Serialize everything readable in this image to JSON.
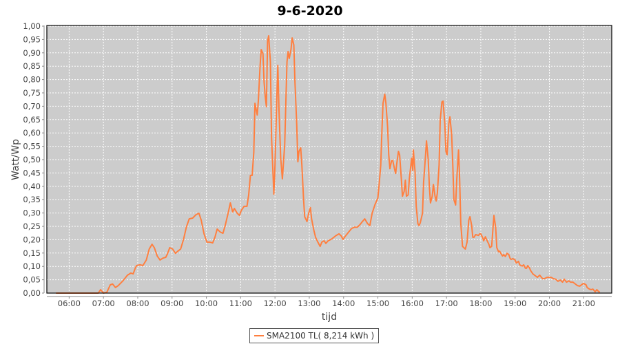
{
  "chart_data": {
    "type": "line",
    "title": "9-6-2020",
    "xlabel": "tijd",
    "ylabel": "Watt/Wp",
    "xlim": [
      "05:21",
      "21:49"
    ],
    "ylim": [
      0,
      1
    ],
    "grid": true,
    "legend_position": "bottom",
    "background_color": "#cccccc",
    "x_ticks": [
      "06:00",
      "07:00",
      "08:00",
      "09:00",
      "10:00",
      "11:00",
      "12:00",
      "13:00",
      "14:00",
      "15:00",
      "16:00",
      "17:00",
      "18:00",
      "19:00",
      "20:00",
      "21:00"
    ],
    "y_ticks": [
      "0,00",
      "0,05",
      "0,10",
      "0,15",
      "0,20",
      "0,25",
      "0,30",
      "0,35",
      "0,40",
      "0,45",
      "0,50",
      "0,55",
      "0,60",
      "0,65",
      "0,70",
      "0,75",
      "0,80",
      "0,85",
      "0,90",
      "0,95",
      "1,00"
    ],
    "series": [
      {
        "name": "SMA2100 TL( 8,214 kWh )",
        "color": "#ff7f3f",
        "points": [
          [
            "05:37",
            0
          ],
          [
            "06:51",
            0
          ],
          [
            "06:55",
            0.013
          ],
          [
            "07:00",
            0
          ],
          [
            "07:06",
            0.003
          ],
          [
            "07:12",
            0.031
          ],
          [
            "07:16",
            0.034
          ],
          [
            "07:21",
            0.021
          ],
          [
            "07:26",
            0.028
          ],
          [
            "07:34",
            0.046
          ],
          [
            "07:42",
            0.067
          ],
          [
            "07:48",
            0.075
          ],
          [
            "07:52",
            0.072
          ],
          [
            "07:56",
            0.095
          ],
          [
            "07:58",
            0.103
          ],
          [
            "08:04",
            0.106
          ],
          [
            "08:09",
            0.103
          ],
          [
            "08:15",
            0.124
          ],
          [
            "08:20",
            0.165
          ],
          [
            "08:25",
            0.183
          ],
          [
            "08:29",
            0.17
          ],
          [
            "08:34",
            0.139
          ],
          [
            "08:39",
            0.124
          ],
          [
            "08:44",
            0.131
          ],
          [
            "08:49",
            0.134
          ],
          [
            "08:52",
            0.147
          ],
          [
            "08:56",
            0.17
          ],
          [
            "09:01",
            0.165
          ],
          [
            "09:06",
            0.149
          ],
          [
            "09:10",
            0.157
          ],
          [
            "09:15",
            0.165
          ],
          [
            "09:20",
            0.201
          ],
          [
            "09:25",
            0.247
          ],
          [
            "09:30",
            0.278
          ],
          [
            "09:36",
            0.281
          ],
          [
            "09:42",
            0.294
          ],
          [
            "09:47",
            0.299
          ],
          [
            "09:51",
            0.273
          ],
          [
            "09:56",
            0.222
          ],
          [
            "10:01",
            0.191
          ],
          [
            "10:06",
            0.191
          ],
          [
            "10:11",
            0.188
          ],
          [
            "10:15",
            0.209
          ],
          [
            "10:19",
            0.24
          ],
          [
            "10:24",
            0.229
          ],
          [
            "10:29",
            0.224
          ],
          [
            "10:33",
            0.253
          ],
          [
            "10:38",
            0.299
          ],
          [
            "10:42",
            0.338
          ],
          [
            "10:46",
            0.304
          ],
          [
            "10:49",
            0.317
          ],
          [
            "10:54",
            0.299
          ],
          [
            "10:58",
            0.291
          ],
          [
            "11:01",
            0.309
          ],
          [
            "11:06",
            0.325
          ],
          [
            "11:11",
            0.325
          ],
          [
            "11:14",
            0.368
          ],
          [
            "11:17",
            0.441
          ],
          [
            "11:20",
            0.441
          ],
          [
            "11:23",
            0.526
          ],
          [
            "11:25",
            0.711
          ],
          [
            "11:29",
            0.667
          ],
          [
            "11:31",
            0.724
          ],
          [
            "11:34",
            0.853
          ],
          [
            "11:36",
            0.912
          ],
          [
            "11:39",
            0.897
          ],
          [
            "11:41",
            0.789
          ],
          [
            "11:43",
            0.737
          ],
          [
            "11:45",
            0.698
          ],
          [
            "11:47",
            0.943
          ],
          [
            "11:49",
            0.964
          ],
          [
            "11:52",
            0.866
          ],
          [
            "11:54",
            0.582
          ],
          [
            "11:58",
            0.371
          ],
          [
            "12:00",
            0.479
          ],
          [
            "12:03",
            0.711
          ],
          [
            "12:05",
            0.853
          ],
          [
            "12:07",
            0.685
          ],
          [
            "12:10",
            0.505
          ],
          [
            "12:13",
            0.428
          ],
          [
            "12:17",
            0.557
          ],
          [
            "12:19",
            0.711
          ],
          [
            "12:21",
            0.866
          ],
          [
            "12:23",
            0.905
          ],
          [
            "12:25",
            0.879
          ],
          [
            "12:28",
            0.912
          ],
          [
            "12:30",
            0.956
          ],
          [
            "12:33",
            0.93
          ],
          [
            "12:35",
            0.789
          ],
          [
            "12:38",
            0.634
          ],
          [
            "12:40",
            0.492
          ],
          [
            "12:42",
            0.531
          ],
          [
            "12:45",
            0.544
          ],
          [
            "12:47",
            0.479
          ],
          [
            "12:50",
            0.35
          ],
          [
            "12:52",
            0.286
          ],
          [
            "12:56",
            0.268
          ],
          [
            "12:59",
            0.299
          ],
          [
            "13:02",
            0.32
          ],
          [
            "13:04",
            0.278
          ],
          [
            "13:08",
            0.235
          ],
          [
            "13:11",
            0.209
          ],
          [
            "13:15",
            0.191
          ],
          [
            "13:19",
            0.175
          ],
          [
            "13:22",
            0.191
          ],
          [
            "13:26",
            0.196
          ],
          [
            "13:29",
            0.186
          ],
          [
            "13:33",
            0.196
          ],
          [
            "13:38",
            0.201
          ],
          [
            "13:43",
            0.209
          ],
          [
            "13:47",
            0.216
          ],
          [
            "13:52",
            0.222
          ],
          [
            "13:56",
            0.214
          ],
          [
            "13:59",
            0.201
          ],
          [
            "14:04",
            0.216
          ],
          [
            "14:09",
            0.229
          ],
          [
            "14:14",
            0.242
          ],
          [
            "14:19",
            0.247
          ],
          [
            "14:24",
            0.247
          ],
          [
            "14:28",
            0.255
          ],
          [
            "14:33",
            0.268
          ],
          [
            "14:37",
            0.278
          ],
          [
            "14:42",
            0.26
          ],
          [
            "14:46",
            0.253
          ],
          [
            "14:50",
            0.299
          ],
          [
            "14:55",
            0.332
          ],
          [
            "15:00",
            0.356
          ],
          [
            "15:02",
            0.402
          ],
          [
            "15:05",
            0.479
          ],
          [
            "15:07",
            0.608
          ],
          [
            "15:09",
            0.711
          ],
          [
            "15:12",
            0.745
          ],
          [
            "15:14",
            0.711
          ],
          [
            "15:17",
            0.621
          ],
          [
            "15:19",
            0.518
          ],
          [
            "15:21",
            0.466
          ],
          [
            "15:24",
            0.497
          ],
          [
            "15:26",
            0.497
          ],
          [
            "15:29",
            0.466
          ],
          [
            "15:31",
            0.448
          ],
          [
            "15:33",
            0.484
          ],
          [
            "15:36",
            0.531
          ],
          [
            "15:38",
            0.518
          ],
          [
            "15:41",
            0.428
          ],
          [
            "15:43",
            0.363
          ],
          [
            "15:46",
            0.381
          ],
          [
            "15:48",
            0.423
          ],
          [
            "15:50",
            0.363
          ],
          [
            "15:53",
            0.368
          ],
          [
            "15:55",
            0.428
          ],
          [
            "15:59",
            0.505
          ],
          [
            "16:01",
            0.459
          ],
          [
            "16:02",
            0.536
          ],
          [
            "16:05",
            0.454
          ],
          [
            "16:07",
            0.325
          ],
          [
            "16:10",
            0.26
          ],
          [
            "16:12",
            0.253
          ],
          [
            "16:14",
            0.263
          ],
          [
            "16:18",
            0.299
          ],
          [
            "16:20",
            0.415
          ],
          [
            "16:23",
            0.505
          ],
          [
            "16:25",
            0.57
          ],
          [
            "16:28",
            0.5
          ],
          [
            "16:30",
            0.402
          ],
          [
            "16:32",
            0.338
          ],
          [
            "16:35",
            0.363
          ],
          [
            "16:37",
            0.407
          ],
          [
            "16:40",
            0.363
          ],
          [
            "16:42",
            0.345
          ],
          [
            "16:44",
            0.376
          ],
          [
            "16:47",
            0.479
          ],
          [
            "16:49",
            0.647
          ],
          [
            "16:52",
            0.716
          ],
          [
            "16:54",
            0.719
          ],
          [
            "16:57",
            0.634
          ],
          [
            "16:59",
            0.531
          ],
          [
            "17:01",
            0.518
          ],
          [
            "17:04",
            0.634
          ],
          [
            "17:06",
            0.66
          ],
          [
            "17:09",
            0.595
          ],
          [
            "17:11",
            0.479
          ],
          [
            "17:13",
            0.35
          ],
          [
            "17:16",
            0.33
          ],
          [
            "17:18",
            0.428
          ],
          [
            "17:21",
            0.536
          ],
          [
            "17:23",
            0.428
          ],
          [
            "17:25",
            0.26
          ],
          [
            "17:28",
            0.175
          ],
          [
            "17:33",
            0.165
          ],
          [
            "17:36",
            0.191
          ],
          [
            "17:39",
            0.273
          ],
          [
            "17:41",
            0.286
          ],
          [
            "17:44",
            0.253
          ],
          [
            "17:46",
            0.209
          ],
          [
            "17:48",
            0.209
          ],
          [
            "17:51",
            0.219
          ],
          [
            "17:56",
            0.216
          ],
          [
            "17:58",
            0.222
          ],
          [
            "18:00",
            0.222
          ],
          [
            "18:03",
            0.209
          ],
          [
            "18:05",
            0.196
          ],
          [
            "18:08",
            0.211
          ],
          [
            "18:10",
            0.201
          ],
          [
            "18:14",
            0.183
          ],
          [
            "18:16",
            0.17
          ],
          [
            "18:19",
            0.175
          ],
          [
            "18:21",
            0.235
          ],
          [
            "18:23",
            0.291
          ],
          [
            "18:26",
            0.247
          ],
          [
            "18:28",
            0.17
          ],
          [
            "18:31",
            0.155
          ],
          [
            "18:33",
            0.157
          ],
          [
            "18:35",
            0.149
          ],
          [
            "18:38",
            0.139
          ],
          [
            "18:40",
            0.144
          ],
          [
            "18:43",
            0.137
          ],
          [
            "18:46",
            0.149
          ],
          [
            "18:49",
            0.144
          ],
          [
            "18:51",
            0.131
          ],
          [
            "18:53",
            0.126
          ],
          [
            "18:56",
            0.129
          ],
          [
            "19:00",
            0.124
          ],
          [
            "19:02",
            0.113
          ],
          [
            "19:06",
            0.119
          ],
          [
            "19:08",
            0.106
          ],
          [
            "19:12",
            0.101
          ],
          [
            "19:15",
            0.106
          ],
          [
            "19:18",
            0.093
          ],
          [
            "19:20",
            0.093
          ],
          [
            "19:22",
            0.103
          ],
          [
            "19:25",
            0.095
          ],
          [
            "19:27",
            0.085
          ],
          [
            "19:31",
            0.072
          ],
          [
            "19:34",
            0.067
          ],
          [
            "19:39",
            0.059
          ],
          [
            "19:43",
            0.067
          ],
          [
            "19:48",
            0.054
          ],
          [
            "19:51",
            0.054
          ],
          [
            "19:56",
            0.059
          ],
          [
            "20:00",
            0.059
          ],
          [
            "20:03",
            0.059
          ],
          [
            "20:07",
            0.054
          ],
          [
            "20:11",
            0.052
          ],
          [
            "20:15",
            0.044
          ],
          [
            "20:19",
            0.049
          ],
          [
            "20:23",
            0.041
          ],
          [
            "20:26",
            0.052
          ],
          [
            "20:30",
            0.041
          ],
          [
            "20:34",
            0.046
          ],
          [
            "20:37",
            0.041
          ],
          [
            "20:41",
            0.041
          ],
          [
            "20:44",
            0.036
          ],
          [
            "20:49",
            0.028
          ],
          [
            "20:53",
            0.026
          ],
          [
            "20:58",
            0.034
          ],
          [
            "21:00",
            0.036
          ],
          [
            "21:04",
            0.031
          ],
          [
            "21:06",
            0.021
          ],
          [
            "21:10",
            0.015
          ],
          [
            "21:13",
            0.013
          ],
          [
            "21:16",
            0.015
          ],
          [
            "21:18",
            0.01
          ],
          [
            "21:20",
            0.005
          ],
          [
            "21:23",
            0.013
          ],
          [
            "21:25",
            0.008
          ],
          [
            "21:28",
            0.003
          ]
        ]
      }
    ]
  }
}
